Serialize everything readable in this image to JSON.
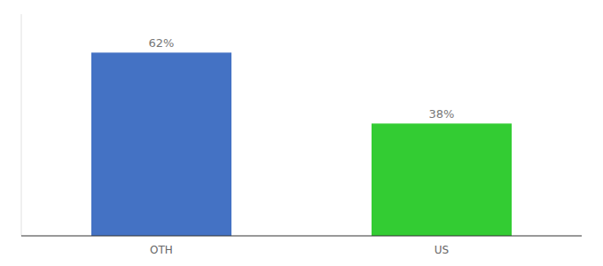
{
  "chart_data": {
    "type": "bar",
    "categories": [
      "OTH",
      "US"
    ],
    "values": [
      62,
      38
    ],
    "value_labels": [
      "62%",
      "38%"
    ],
    "colors": [
      "#4472c4",
      "#33cc33"
    ],
    "ylim": [
      0,
      75
    ],
    "data_labels": true,
    "tick_labels": "x",
    "grid": false
  }
}
